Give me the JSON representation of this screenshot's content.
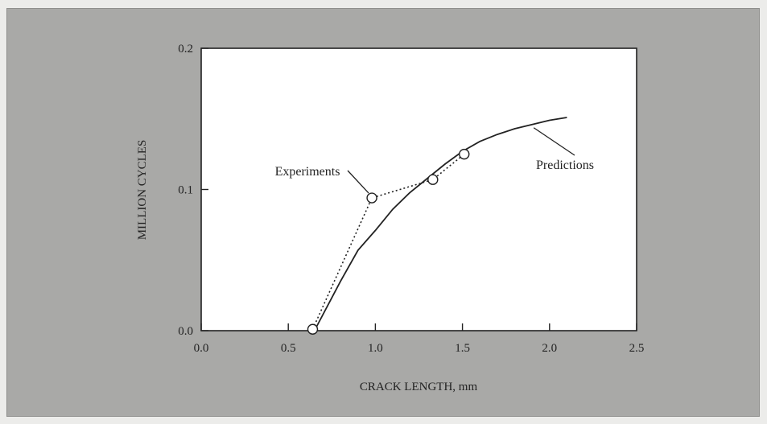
{
  "chart_data": {
    "type": "line",
    "xlabel": "CRACK LENGTH, mm",
    "ylabel": "MILLION CYCLES",
    "xlim": [
      0.0,
      2.5
    ],
    "ylim": [
      0.0,
      0.2
    ],
    "x_ticks": [
      "0.0",
      "0.5",
      "1.0",
      "1.5",
      "2.0",
      "2.5"
    ],
    "y_ticks": [
      "0.0",
      "0.1",
      "0.2"
    ],
    "grid": false,
    "series": [
      {
        "name": "Predictions",
        "style": "solid",
        "marker": "none",
        "x": [
          0.65,
          0.8,
          0.9,
          1.0,
          1.1,
          1.2,
          1.3,
          1.4,
          1.5,
          1.6,
          1.7,
          1.8,
          1.9,
          2.0,
          2.1
        ],
        "y": [
          0.0,
          0.035,
          0.057,
          0.071,
          0.086,
          0.098,
          0.108,
          0.118,
          0.127,
          0.134,
          0.139,
          0.143,
          0.146,
          0.149,
          0.151
        ]
      },
      {
        "name": "Experiments",
        "style": "dotted",
        "marker": "circle",
        "x": [
          0.64,
          0.98,
          1.33,
          1.51
        ],
        "y": [
          0.001,
          0.094,
          0.107,
          0.125
        ]
      }
    ],
    "annotations": [
      {
        "text": "Experiments",
        "points_to_series": "Experiments"
      },
      {
        "text": "Predictions",
        "points_to_series": "Predictions"
      }
    ],
    "colors": {
      "panel": "#a9a9a7",
      "plot_background": "#ffffff",
      "ink": "#222222"
    }
  }
}
